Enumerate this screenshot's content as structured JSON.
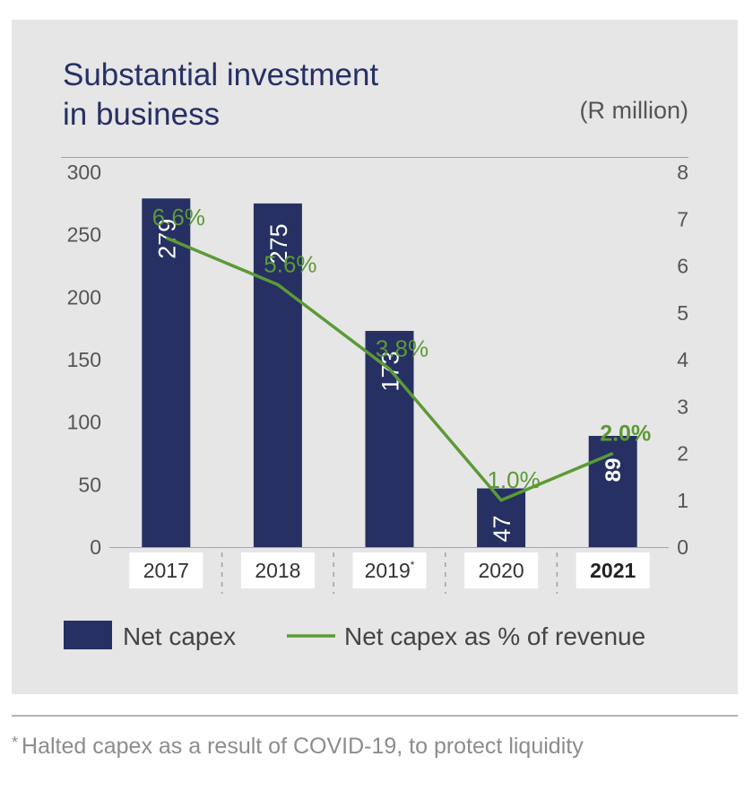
{
  "chart_data": {
    "type": "bar",
    "title_line1": "Substantial investment",
    "title_line2": "in business",
    "unit": "(R million)",
    "categories": [
      "2017",
      "2018",
      "2019",
      "2020",
      "2021"
    ],
    "category_markers": [
      "",
      "",
      "*",
      "",
      ""
    ],
    "highlight_category": "2021",
    "series": [
      {
        "name": "Net capex",
        "kind": "bar",
        "values": [
          279,
          275,
          173,
          47,
          89
        ],
        "labels": [
          "279",
          "275",
          "173",
          "47",
          "89"
        ]
      },
      {
        "name": "Net capex as % of revenue",
        "kind": "line",
        "axis": "right",
        "values": [
          6.6,
          5.6,
          3.8,
          1.0,
          2.0
        ],
        "labels": [
          "6.6%",
          "5.6%",
          "3.8%",
          "1.0%",
          "2.0%"
        ]
      }
    ],
    "y_left": {
      "min": 0,
      "max": 300,
      "ticks": [
        "0",
        "50",
        "100",
        "150",
        "200",
        "250",
        "300"
      ]
    },
    "y_right": {
      "min": 0,
      "max": 8,
      "ticks": [
        "0",
        "1",
        "2",
        "3",
        "4",
        "5",
        "6",
        "7",
        "8"
      ]
    },
    "legend_position": "bottom",
    "colors": {
      "bar": "#263063",
      "line": "#5c9a36",
      "axis": "#a6a6a6",
      "tick_text": "#555555"
    }
  },
  "footnote": {
    "marker": "*",
    "text": "Halted capex as a result of COVID-19, to protect liquidity"
  }
}
